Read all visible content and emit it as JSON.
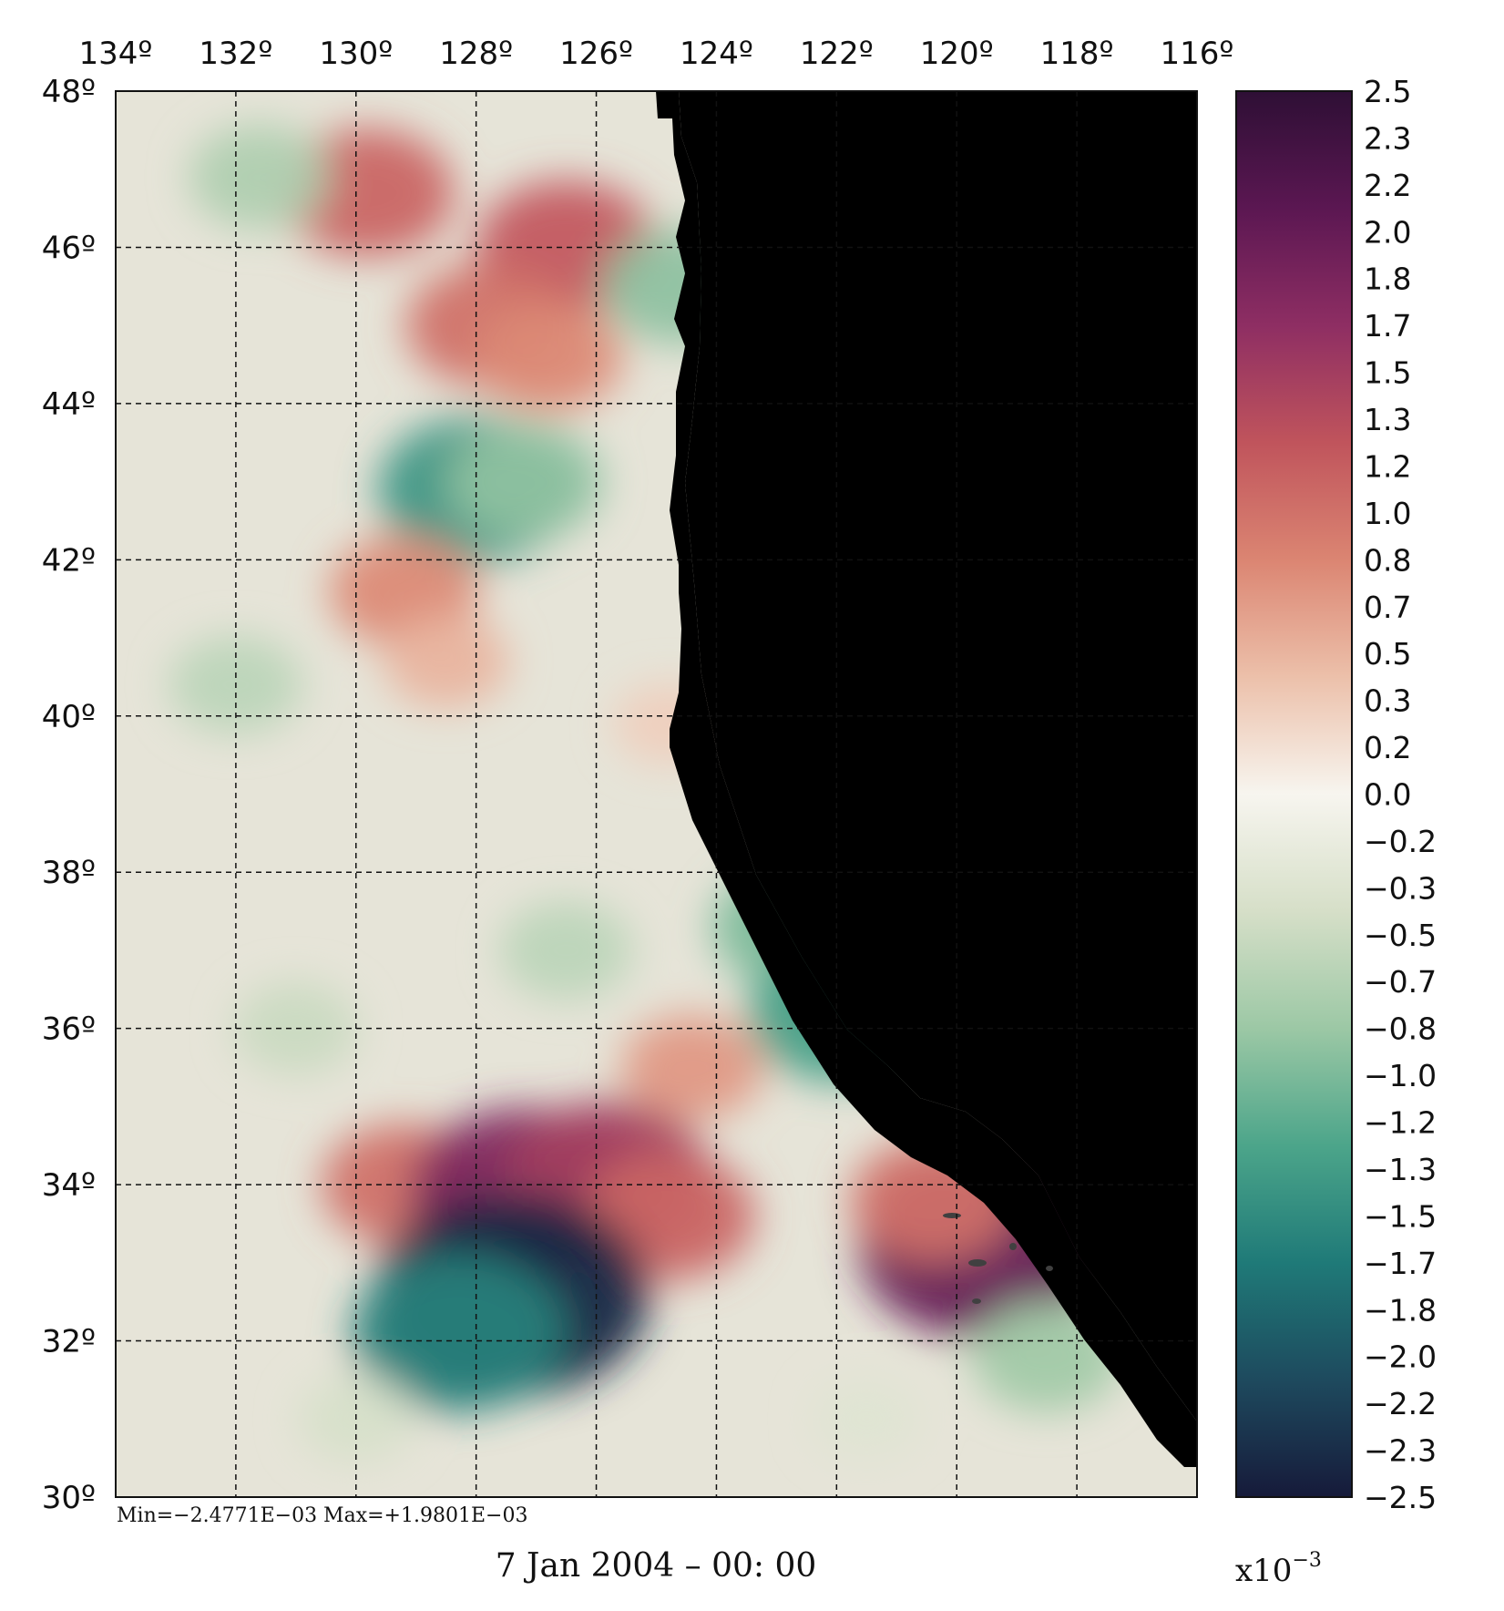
{
  "map": {
    "lon_labels": [
      "134º",
      "132º",
      "130º",
      "128º",
      "126º",
      "124º",
      "122º",
      "120º",
      "118º",
      "116º"
    ],
    "lat_labels": [
      "48º",
      "46º",
      "44º",
      "42º",
      "40º",
      "38º",
      "36º",
      "34º",
      "32º",
      "30º"
    ],
    "lon_range": [
      -134,
      -116
    ],
    "lat_range": [
      30,
      48
    ],
    "grid": "dashed",
    "land_color": "#404040",
    "coast_color": "#dcdcdc",
    "stats": "Min=−2.4771E−03   Max=+1.9801E−03",
    "date": "7 Jan 2004 – 00: 00"
  },
  "field_anomalies": [
    {
      "lon": -129.8,
      "lat": 46.7,
      "value": 1.1
    },
    {
      "lon": -126.5,
      "lat": 46.0,
      "value": 1.2
    },
    {
      "lon": -127.8,
      "lat": 45.0,
      "value": 1.0
    },
    {
      "lon": -126.8,
      "lat": 44.6,
      "value": 0.8
    },
    {
      "lon": -128.0,
      "lat": 42.9,
      "value": -1.4
    },
    {
      "lon": -127.2,
      "lat": 43.0,
      "value": -0.9
    },
    {
      "lon": -124.6,
      "lat": 45.5,
      "value": -0.9
    },
    {
      "lon": -131.6,
      "lat": 46.9,
      "value": -0.7
    },
    {
      "lon": -129.2,
      "lat": 41.6,
      "value": 0.8
    },
    {
      "lon": -128.5,
      "lat": 40.7,
      "value": 0.5
    },
    {
      "lon": -124.8,
      "lat": 39.9,
      "value": 0.3
    },
    {
      "lon": -122.7,
      "lat": 37.3,
      "value": -1.0
    },
    {
      "lon": -121.9,
      "lat": 36.2,
      "value": -1.3
    },
    {
      "lon": -129.2,
      "lat": 34.0,
      "value": 1.0
    },
    {
      "lon": -127.2,
      "lat": 33.9,
      "value": 1.8
    },
    {
      "lon": -125.8,
      "lat": 34.1,
      "value": 1.5
    },
    {
      "lon": -124.8,
      "lat": 33.6,
      "value": 1.1
    },
    {
      "lon": -124.4,
      "lat": 35.5,
      "value": 0.7
    },
    {
      "lon": -127.4,
      "lat": 32.6,
      "value": -2.4
    },
    {
      "lon": -128.3,
      "lat": 32.1,
      "value": -1.6
    },
    {
      "lon": -119.6,
      "lat": 33.2,
      "value": 2.0
    },
    {
      "lon": -120.4,
      "lat": 33.8,
      "value": 1.0
    },
    {
      "lon": -118.5,
      "lat": 31.8,
      "value": -0.8
    },
    {
      "lon": -132.0,
      "lat": 40.4,
      "value": -0.6
    },
    {
      "lon": -131.0,
      "lat": 36.0,
      "value": -0.5
    },
    {
      "lon": -126.5,
      "lat": 37.0,
      "value": -0.6
    },
    {
      "lon": -130.0,
      "lat": 31.0,
      "value": -0.4
    },
    {
      "lon": -121.5,
      "lat": 31.0,
      "value": -0.3
    }
  ],
  "colorbar": {
    "labels": [
      "2.5",
      "2.3",
      "2.2",
      "2.0",
      "1.8",
      "1.7",
      "1.5",
      "1.3",
      "1.2",
      "1.0",
      "0.8",
      "0.7",
      "0.5",
      "0.3",
      "0.2",
      "0.0",
      "−0.2",
      "−0.3",
      "−0.5",
      "−0.7",
      "−0.8",
      "−1.0",
      "−1.2",
      "−1.3",
      "−1.5",
      "−1.7",
      "−1.8",
      "−2.0",
      "−2.2",
      "−2.3",
      "−2.5"
    ],
    "range": [
      -2.5,
      2.5
    ],
    "stops": [
      "#161a3a",
      "#1e4a5e",
      "#1f7a78",
      "#4ca58a",
      "#9cc8a5",
      "#d6dfc8",
      "#f7f5ef",
      "#ecc0aa",
      "#db8572",
      "#c0545c",
      "#8e2e63",
      "#5b1752",
      "#2e0f35"
    ],
    "scale_label": "x10",
    "scale_exp": "−3"
  }
}
